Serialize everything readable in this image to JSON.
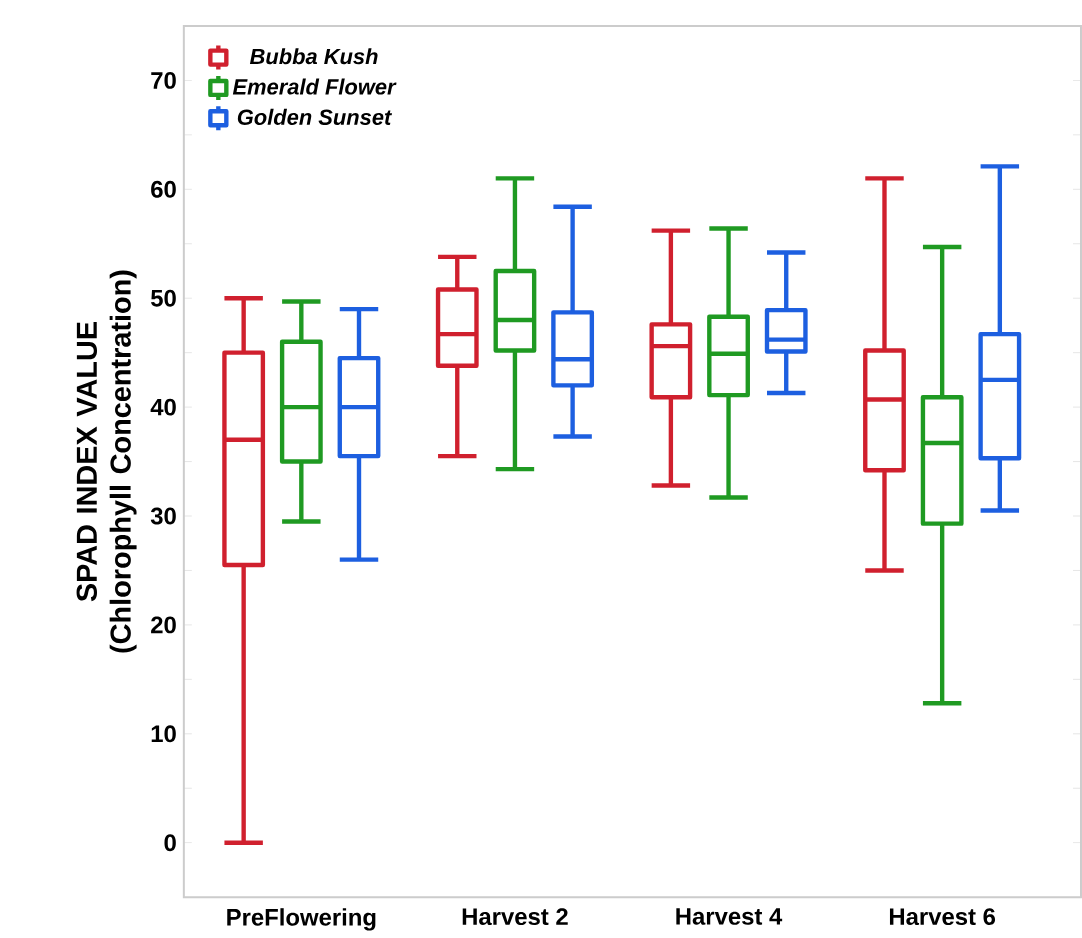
{
  "chart_data": {
    "type": "box",
    "ylabel": "SPAD INDEX VALUE (Chlorophyll Concentration)",
    "categories": [
      "PreFlowering",
      "Harvest 2",
      "Harvest 4",
      "Harvest 6"
    ],
    "ylim": [
      -5,
      75
    ],
    "yticks": [
      0,
      {
        "value": 5,
        "label": null
      },
      10,
      {
        "value": 15,
        "label": null
      },
      20,
      {
        "value": 25,
        "label": null
      },
      30,
      {
        "value": 35,
        "label": null
      },
      40,
      {
        "value": 45,
        "label": null
      },
      50,
      {
        "value": 55,
        "label": null
      },
      60,
      {
        "value": 65,
        "label": null
      },
      70
    ],
    "legend": "top left",
    "grid": false,
    "series": [
      {
        "name": "Bubba Kush",
        "color": "#d0202e",
        "boxes": [
          {
            "low": 0,
            "q1": 25.5,
            "median": 37,
            "q3": 45,
            "high": 50
          },
          {
            "low": 35.5,
            "q1": 43.8,
            "median": 46.7,
            "q3": 50.8,
            "high": 53.8
          },
          {
            "low": 32.8,
            "q1": 40.9,
            "median": 45.6,
            "q3": 47.6,
            "high": 56.2
          },
          {
            "low": 25,
            "q1": 34.2,
            "median": 40.7,
            "q3": 45.2,
            "high": 61
          }
        ]
      },
      {
        "name": "Emerald Flower",
        "color": "#1f9a22",
        "boxes": [
          {
            "low": 29.5,
            "q1": 35,
            "median": 40,
            "q3": 46,
            "high": 49.7
          },
          {
            "low": 34.3,
            "q1": 45.2,
            "median": 48,
            "q3": 52.5,
            "high": 61
          },
          {
            "low": 31.7,
            "q1": 41.1,
            "median": 44.9,
            "q3": 48.3,
            "high": 56.4
          },
          {
            "low": 12.8,
            "q1": 29.3,
            "median": 36.7,
            "q3": 40.9,
            "high": 54.7
          }
        ]
      },
      {
        "name": "Golden Sunset",
        "color": "#1d5fe0",
        "boxes": [
          {
            "low": 26,
            "q1": 35.5,
            "median": 40,
            "q3": 44.5,
            "high": 49
          },
          {
            "low": 37.3,
            "q1": 42,
            "median": 44.4,
            "q3": 48.7,
            "high": 58.4
          },
          {
            "low": 41.3,
            "q1": 45.1,
            "median": 46.2,
            "q3": 48.9,
            "high": 54.2
          },
          {
            "low": 30.5,
            "q1": 35.3,
            "median": 42.5,
            "q3": 46.7,
            "high": 62.1
          }
        ]
      }
    ]
  }
}
